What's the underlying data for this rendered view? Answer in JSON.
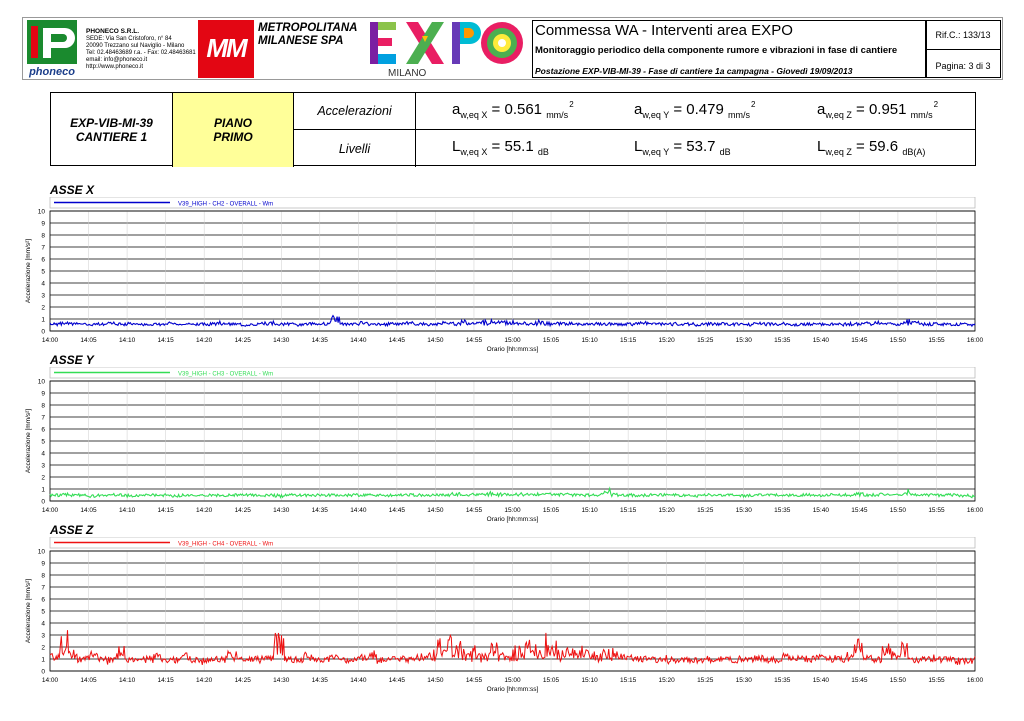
{
  "header": {
    "company": {
      "name": "PHONECO S.R.L.",
      "address": "SEDE: Via San Cristoforo, n° 84",
      "city": "20090 Trezzano sul Naviglio - Milano",
      "phone": "Tel: 02.48463689 r.a. - Fax: 02.48463681",
      "email": "email: info@phoneco.it",
      "web": "http://www.phoneco.it",
      "logo_text": "phoneco"
    },
    "client": {
      "logo": "MM",
      "line1": "METROPOLITANA",
      "line2": "MILANESE SPA"
    },
    "expo": {
      "logo": "EXPO",
      "city": "MILANO"
    },
    "title": "Commessa WA - Interventi area EXPO",
    "subtitle": "Monitoraggio periodico della componente rumore e vibrazioni in fase di cantiere",
    "station_line": "Postazione EXP-VIB-MI-39 - Fase di cantiere 1a campagna - Giovedì 19/09/2013",
    "ref": "Rif.C.: 133/13",
    "page": "Pagina: 3 di 3"
  },
  "summary": {
    "station_line1": "EXP-VIB-MI-39",
    "station_line2": "CANTIERE 1",
    "floor_line1": "PIANO",
    "floor_line2": "PRIMO",
    "acc_label": "Accelerazioni",
    "lev_label": "Livelli",
    "acc": [
      {
        "sym": "a",
        "sub": "w,eq X",
        "val": "= 0.561",
        "unit": "mm/s",
        "pow": "2"
      },
      {
        "sym": "a",
        "sub": "w,eq Y",
        "val": "= 0.479",
        "unit": "mm/s",
        "pow": "2"
      },
      {
        "sym": "a",
        "sub": "w,eq Z",
        "val": "= 0.951",
        "unit": "mm/s",
        "pow": "2"
      }
    ],
    "lev": [
      {
        "sym": "L",
        "sub": "w,eq X",
        "val": "= 55.1",
        "unit": "dB"
      },
      {
        "sym": "L",
        "sub": "w,eq Y",
        "val": "= 53.7",
        "unit": "dB"
      },
      {
        "sym": "L",
        "sub": "w,eq Z",
        "val": "= 59.6",
        "unit": "dB(A)"
      }
    ]
  },
  "colors": {
    "x": "#0000cc",
    "y": "#33dd55",
    "z": "#ee1111",
    "highlight": "#ffff99",
    "mm": "#e30613",
    "phoneco": "#1a8a2e"
  },
  "chart_data": [
    {
      "type": "line",
      "title": "ASSE X",
      "legend": "V39_HIGH - CH2 - OVERALL - Wm",
      "xlabel": "Orario [hh:mm:ss]",
      "ylabel": "Accelerazione [mm/s²]",
      "ylim": [
        0,
        10
      ],
      "yticks": [
        "0",
        "1",
        "2",
        "3",
        "4",
        "5",
        "6",
        "7",
        "8",
        "9",
        "10"
      ],
      "xticks": [
        "14:00",
        "14:05",
        "14:10",
        "14:15",
        "14:20",
        "14:25",
        "14:30",
        "14:35",
        "14:40",
        "14:45",
        "14:50",
        "14:55",
        "15:00",
        "15:05",
        "15:10",
        "15:15",
        "15:20",
        "15:25",
        "15:30",
        "15:35",
        "15:40",
        "15:45",
        "15:50",
        "15:55",
        "16:00"
      ],
      "grid": true,
      "series": [
        {
          "name": "V39_HIGH - CH2 - OVERALL - Wm",
          "baseline": 0.56,
          "values": [
            0.6,
            0.7,
            0.6,
            0.5,
            0.6,
            0.6,
            0.7,
            0.5,
            0.6,
            0.6,
            0.5,
            0.6,
            0.7,
            0.6,
            0.6,
            0.5,
            0.6,
            0.6,
            0.7,
            0.6,
            0.5,
            0.6,
            0.6,
            0.7,
            0.6,
            0.6,
            0.5,
            0.6,
            0.6,
            0.6,
            1.2,
            0.6,
            0.6,
            0.7,
            0.5,
            0.6,
            0.6,
            0.6,
            0.7,
            0.6,
            0.6,
            0.6,
            0.7,
            0.7,
            0.8,
            0.7,
            0.8,
            1.0,
            0.9,
            0.8,
            0.7,
            0.8,
            0.8,
            0.7,
            0.7,
            0.7,
            0.6,
            0.6,
            0.7,
            0.6,
            0.6,
            0.6,
            0.6,
            0.7,
            0.6,
            0.6,
            0.6,
            0.6,
            0.6,
            0.5,
            0.6,
            0.6,
            0.6,
            0.6,
            0.5,
            0.6,
            0.6,
            0.6,
            0.6,
            0.5,
            0.5,
            0.6,
            0.6,
            0.6,
            0.5,
            0.6,
            0.6,
            0.7,
            0.7,
            0.6,
            0.6,
            0.9,
            0.7,
            0.6,
            0.6,
            0.6,
            0.6,
            0.5,
            0.5,
            0.5
          ]
        }
      ]
    },
    {
      "type": "line",
      "title": "ASSE Y",
      "legend": "V39_HIGH - CH3 - OVERALL - Wm",
      "xlabel": "Orario [hh:mm:ss]",
      "ylabel": "Accelerazione [mm/s²]",
      "ylim": [
        0,
        10
      ],
      "yticks": [
        "0",
        "1",
        "2",
        "3",
        "4",
        "5",
        "6",
        "7",
        "8",
        "9",
        "10"
      ],
      "xticks": [
        "14:00",
        "14:05",
        "14:10",
        "14:15",
        "14:20",
        "14:25",
        "14:30",
        "14:35",
        "14:40",
        "14:45",
        "14:50",
        "14:55",
        "15:00",
        "15:05",
        "15:10",
        "15:15",
        "15:20",
        "15:25",
        "15:30",
        "15:35",
        "15:40",
        "15:45",
        "15:50",
        "15:55",
        "16:00"
      ],
      "grid": true,
      "series": [
        {
          "name": "V39_HIGH - CH3 - OVERALL - Wm",
          "baseline": 0.48,
          "values": [
            0.5,
            0.6,
            0.5,
            0.5,
            0.4,
            0.5,
            0.5,
            0.5,
            0.4,
            0.5,
            0.5,
            0.5,
            0.5,
            0.4,
            0.5,
            0.5,
            0.5,
            0.5,
            0.4,
            0.5,
            0.5,
            0.5,
            0.5,
            0.5,
            0.4,
            0.5,
            0.5,
            0.5,
            0.5,
            0.5,
            0.5,
            0.5,
            0.5,
            0.5,
            0.5,
            0.5,
            0.5,
            0.5,
            0.5,
            0.5,
            0.5,
            0.5,
            0.5,
            0.6,
            0.6,
            0.6,
            0.6,
            0.7,
            0.6,
            0.6,
            0.6,
            0.6,
            0.6,
            0.6,
            0.6,
            0.6,
            0.5,
            0.5,
            0.5,
            1.0,
            0.6,
            0.5,
            0.5,
            0.5,
            0.5,
            0.5,
            0.5,
            0.5,
            0.5,
            0.4,
            0.5,
            0.5,
            0.5,
            0.5,
            0.4,
            0.5,
            0.5,
            0.5,
            0.5,
            0.5,
            0.5,
            0.5,
            0.5,
            0.5,
            0.5,
            0.5,
            0.6,
            0.6,
            0.6,
            0.6,
            0.6,
            0.9,
            0.6,
            0.5,
            0.5,
            0.5,
            0.5,
            0.4,
            0.4,
            0.4
          ]
        }
      ]
    },
    {
      "type": "line",
      "title": "ASSE Z",
      "legend": "V39_HIGH - CH4 - OVERALL - Wm",
      "xlabel": "Orario [hh:mm:ss]",
      "ylabel": "Accelerazione [mm/s²]",
      "ylim": [
        0,
        10
      ],
      "yticks": [
        "0",
        "1",
        "2",
        "3",
        "4",
        "5",
        "6",
        "7",
        "8",
        "9",
        "10"
      ],
      "xticks": [
        "14:00",
        "14:05",
        "14:10",
        "14:15",
        "14:20",
        "14:25",
        "14:30",
        "14:35",
        "14:40",
        "14:45",
        "14:50",
        "14:55",
        "15:00",
        "15:05",
        "15:10",
        "15:15",
        "15:20",
        "15:25",
        "15:30",
        "15:35",
        "15:40",
        "15:45",
        "15:50",
        "15:55",
        "16:00"
      ],
      "grid": true,
      "series": [
        {
          "name": "V39_HIGH - CH4 - OVERALL - Wm",
          "baseline": 0.95,
          "values": [
            1.2,
            3.1,
            1.8,
            1.0,
            1.4,
            1.2,
            0.8,
            2.1,
            1.0,
            0.9,
            1.1,
            1.3,
            0.8,
            1.0,
            1.5,
            0.9,
            0.8,
            1.0,
            0.9,
            1.8,
            0.8,
            0.9,
            1.0,
            1.1,
            3.0,
            1.0,
            0.9,
            1.4,
            0.8,
            1.0,
            1.2,
            0.9,
            0.8,
            1.3,
            1.7,
            0.9,
            1.0,
            1.1,
            0.8,
            1.6,
            1.4,
            2.6,
            2.8,
            2.4,
            1.6,
            2.1,
            1.8,
            2.4,
            1.5,
            1.9,
            2.2,
            2.4,
            1.7,
            3.2,
            2.3,
            1.8,
            1.9,
            1.5,
            1.4,
            1.6,
            2.0,
            1.3,
            1.2,
            1.0,
            0.9,
            1.1,
            0.8,
            0.9,
            1.0,
            0.8,
            0.9,
            1.0,
            0.8,
            1.0,
            0.9,
            1.1,
            1.2,
            0.9,
            1.6,
            1.0,
            1.2,
            0.9,
            1.4,
            1.0,
            1.1,
            1.3,
            2.4,
            1.1,
            1.0,
            2.0,
            1.5,
            2.1,
            1.0,
            0.9,
            1.2,
            1.0,
            0.9,
            0.8,
            0.7,
            1.4
          ]
        }
      ]
    }
  ]
}
